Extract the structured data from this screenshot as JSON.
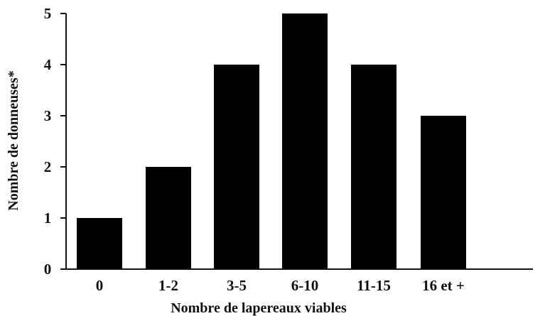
{
  "chart_data": {
    "type": "bar",
    "categories": [
      "0",
      "1-2",
      "3-5",
      "6-10",
      "11-15",
      "16 et +"
    ],
    "values": [
      1,
      2,
      4,
      5,
      4,
      3
    ],
    "xlabel": "Nombre de lapereaux viables",
    "ylabel": "Nombre de donneuses*",
    "ylim": [
      0,
      5
    ],
    "yticks": [
      "0",
      "1",
      "2",
      "3",
      "4",
      "5"
    ],
    "grid": false,
    "colors": {
      "bar": "#000000",
      "axis": "#111111"
    }
  }
}
